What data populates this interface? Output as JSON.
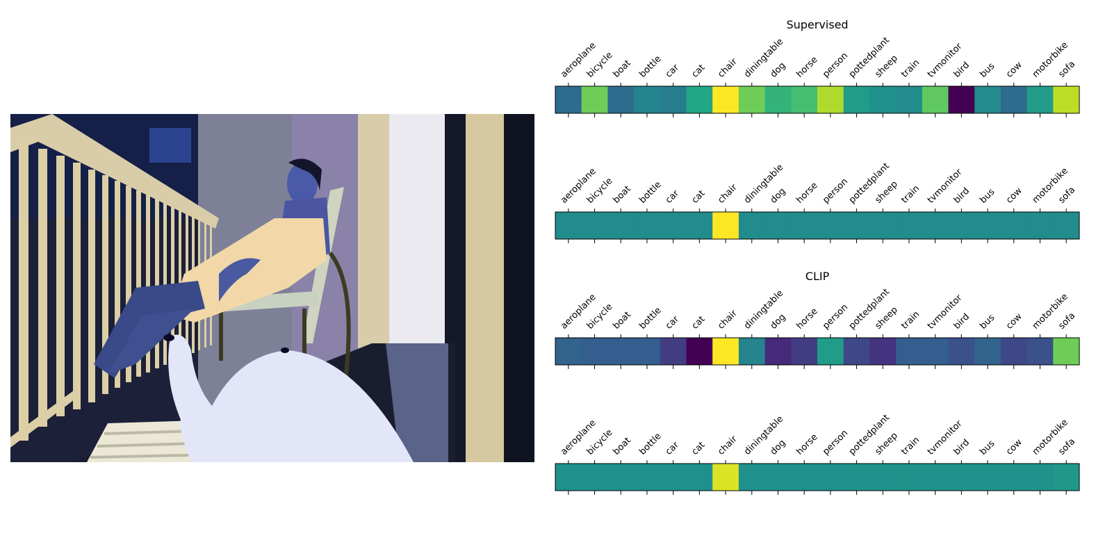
{
  "photo": {
    "description_icon": "photo-of-girl-on-balcony-chair-icon"
  },
  "colormap": "viridis",
  "chart_data": [
    {
      "type": "heatmap",
      "title": "Supervised",
      "categories": [
        "aeroplane",
        "bicycle",
        "boat",
        "bottle",
        "car",
        "cat",
        "chair",
        "diningtable",
        "dog",
        "horse",
        "person",
        "pottedplant",
        "sheep",
        "train",
        "tvmonitor",
        "bird",
        "bus",
        "cow",
        "motorbike",
        "sofa"
      ],
      "values": [
        0.35,
        0.78,
        0.35,
        0.45,
        0.42,
        0.6,
        1.0,
        0.78,
        0.65,
        0.7,
        0.88,
        0.55,
        0.5,
        0.48,
        0.75,
        0.0,
        0.48,
        0.35,
        0.55,
        0.9
      ]
    },
    {
      "type": "heatmap",
      "title": "",
      "categories": [
        "aeroplane",
        "bicycle",
        "boat",
        "bottle",
        "car",
        "cat",
        "chair",
        "diningtable",
        "dog",
        "horse",
        "person",
        "pottedplant",
        "sheep",
        "train",
        "tvmonitor",
        "bird",
        "bus",
        "cow",
        "motorbike",
        "sofa"
      ],
      "values": [
        0.48,
        0.48,
        0.48,
        0.48,
        0.48,
        0.48,
        1.0,
        0.48,
        0.48,
        0.48,
        0.48,
        0.48,
        0.48,
        0.48,
        0.48,
        0.48,
        0.48,
        0.48,
        0.48,
        0.48
      ]
    },
    {
      "type": "heatmap",
      "title": "CLIP",
      "categories": [
        "aeroplane",
        "bicycle",
        "boat",
        "bottle",
        "car",
        "cat",
        "chair",
        "diningtable",
        "dog",
        "horse",
        "person",
        "pottedplant",
        "sheep",
        "train",
        "tvmonitor",
        "bird",
        "bus",
        "cow",
        "motorbike",
        "sofa"
      ],
      "values": [
        0.32,
        0.3,
        0.3,
        0.3,
        0.18,
        0.0,
        1.0,
        0.45,
        0.12,
        0.18,
        0.55,
        0.22,
        0.15,
        0.3,
        0.3,
        0.25,
        0.32,
        0.22,
        0.25,
        0.78
      ]
    },
    {
      "type": "heatmap",
      "title": "",
      "categories": [
        "aeroplane",
        "bicycle",
        "boat",
        "bottle",
        "car",
        "cat",
        "chair",
        "diningtable",
        "dog",
        "horse",
        "person",
        "pottedplant",
        "sheep",
        "train",
        "tvmonitor",
        "bird",
        "bus",
        "cow",
        "motorbike",
        "sofa"
      ],
      "values": [
        0.5,
        0.5,
        0.5,
        0.5,
        0.5,
        0.5,
        0.95,
        0.5,
        0.5,
        0.5,
        0.5,
        0.51,
        0.51,
        0.51,
        0.51,
        0.51,
        0.51,
        0.51,
        0.51,
        0.53
      ]
    }
  ]
}
